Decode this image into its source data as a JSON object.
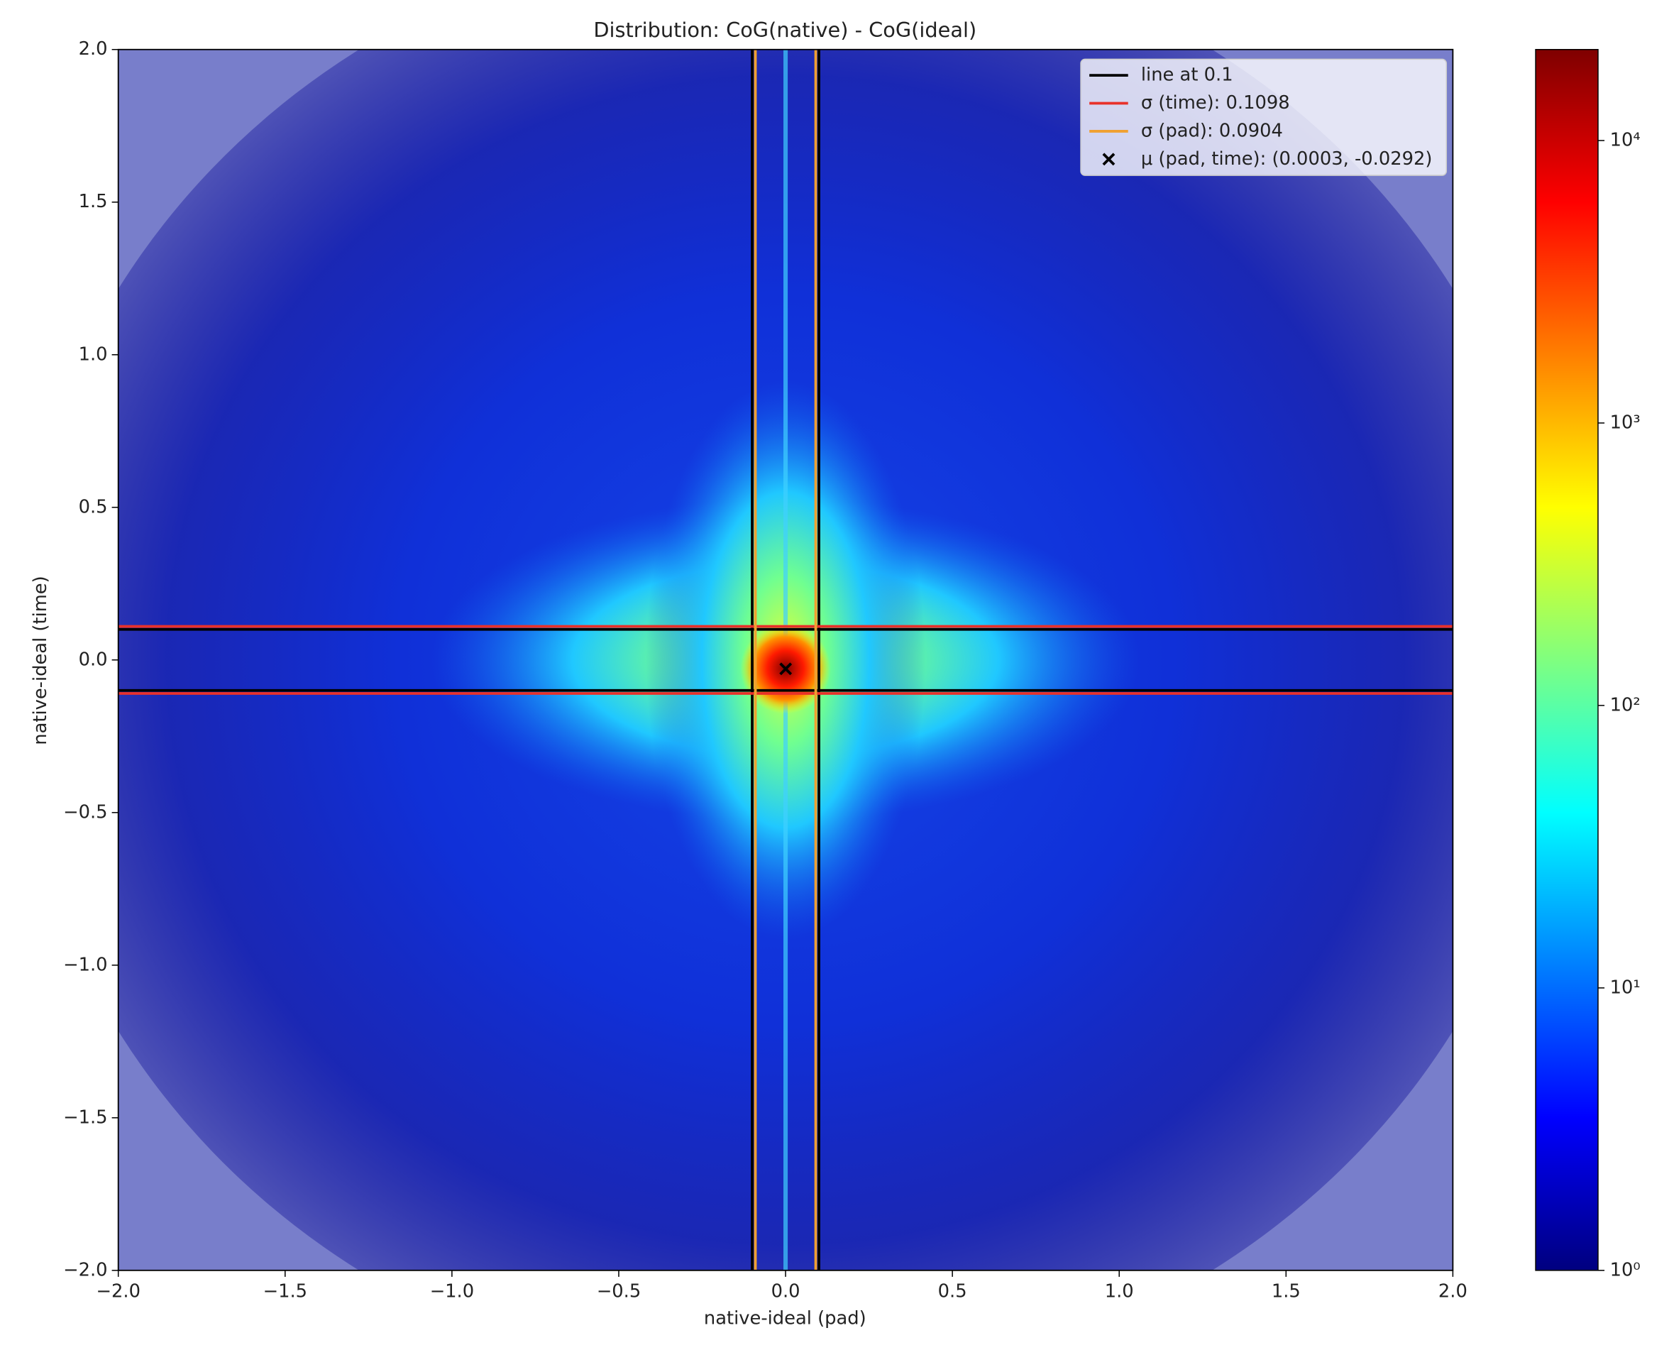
{
  "chart_data": {
    "type": "hist2d",
    "title": "Distribution: CoG(native) - CoG(ideal)",
    "xlabel": "native-ideal (pad)",
    "ylabel": "native-ideal (time)",
    "xlim": [
      -2,
      2
    ],
    "ylim": [
      -2,
      2
    ],
    "xticks": [
      {
        "value": -2,
        "label": "−2.0"
      },
      {
        "value": -1.5,
        "label": "−1.5"
      },
      {
        "value": -1,
        "label": "−1.0"
      },
      {
        "value": -0.5,
        "label": "−0.5"
      },
      {
        "value": 0,
        "label": "0.0"
      },
      0.5,
      {
        "value": 1,
        "label": "1.0"
      },
      1.5,
      {
        "value": 2,
        "label": "2.0"
      }
    ],
    "yticks": [
      {
        "value": -2,
        "label": "−2.0"
      },
      {
        "value": -1.5,
        "label": "−1.5"
      },
      {
        "value": -1,
        "label": "−1.0"
      },
      {
        "value": -0.5,
        "label": "−0.5"
      },
      {
        "value": 0,
        "label": "0.0"
      },
      0.5,
      {
        "value": 1,
        "label": "1.0"
      },
      1.5,
      {
        "value": 2,
        "label": "2.0"
      }
    ],
    "colorbar": {
      "log_scale": true,
      "clim": [
        1,
        21000
      ],
      "ticks": [
        {
          "value": 1,
          "label": "10⁰"
        },
        {
          "value": 10,
          "label": "10¹"
        },
        {
          "value": 100,
          "label": "10²"
        },
        {
          "value": 1000,
          "label": "10³"
        },
        {
          "value": 10000,
          "label": "10⁴"
        }
      ]
    },
    "lines": [
      {
        "name": "line at 0.1",
        "color": "#000000",
        "x": [
          -0.1,
          0.1
        ],
        "y": [
          -0.1,
          0.1
        ]
      },
      {
        "name": "σ (time): 0.1098",
        "color": "#e8312a",
        "y": [
          -0.1098,
          0.1098
        ]
      },
      {
        "name": "σ (pad): 0.0904",
        "color": "#f0a030",
        "x": [
          -0.0904,
          0.0904
        ]
      }
    ],
    "points": {
      "name": "μ (pad, time): (0.0003, -0.0292)",
      "color": "#000000",
      "x": [
        0.0003
      ],
      "y": [
        -0.0292
      ]
    },
    "legend": "upper right"
  }
}
